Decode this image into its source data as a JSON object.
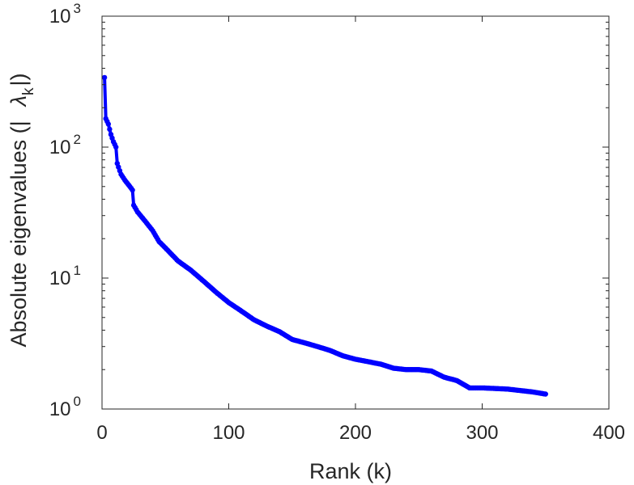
{
  "chart_data": {
    "type": "line",
    "title": "",
    "xlabel": "Rank (k)",
    "ylabel": "Absolute eigenvalues (|λk|)",
    "ylabel_parts": {
      "prefix": "Absolute eigenvalues (|",
      "symbol": "λ",
      "subscript": "k",
      "suffix": "|)"
    },
    "xlim": [
      0,
      400
    ],
    "ylim": [
      1,
      1000
    ],
    "yscale": "log",
    "grid": false,
    "xticks": [
      "0",
      "100",
      "200",
      "300",
      "400"
    ],
    "yticks": [
      {
        "base": "10",
        "exp": "0"
      },
      {
        "base": "10",
        "exp": "1"
      },
      {
        "base": "10",
        "exp": "2"
      },
      {
        "base": "10",
        "exp": "3"
      }
    ],
    "series": [
      {
        "color": "#0000ff",
        "marker": "circle",
        "x": [
          2,
          3,
          5,
          7,
          9,
          11,
          12,
          15,
          18,
          22,
          24,
          25,
          28,
          33,
          40,
          45,
          50,
          60,
          70,
          80,
          90,
          100,
          110,
          120,
          130,
          140,
          150,
          160,
          170,
          180,
          190,
          200,
          210,
          220,
          230,
          240,
          250,
          260,
          270,
          280,
          290,
          300,
          320,
          340,
          350
        ],
        "y": [
          340,
          165,
          150,
          125,
          110,
          100,
          75,
          62,
          56,
          50,
          47,
          36,
          32,
          28,
          23,
          19,
          17,
          13.5,
          11.5,
          9.5,
          7.8,
          6.5,
          5.6,
          4.8,
          4.3,
          3.9,
          3.4,
          3.2,
          3.0,
          2.8,
          2.55,
          2.4,
          2.3,
          2.2,
          2.05,
          2.0,
          2.0,
          1.95,
          1.75,
          1.65,
          1.45,
          1.45,
          1.42,
          1.35,
          1.3
        ]
      }
    ]
  }
}
